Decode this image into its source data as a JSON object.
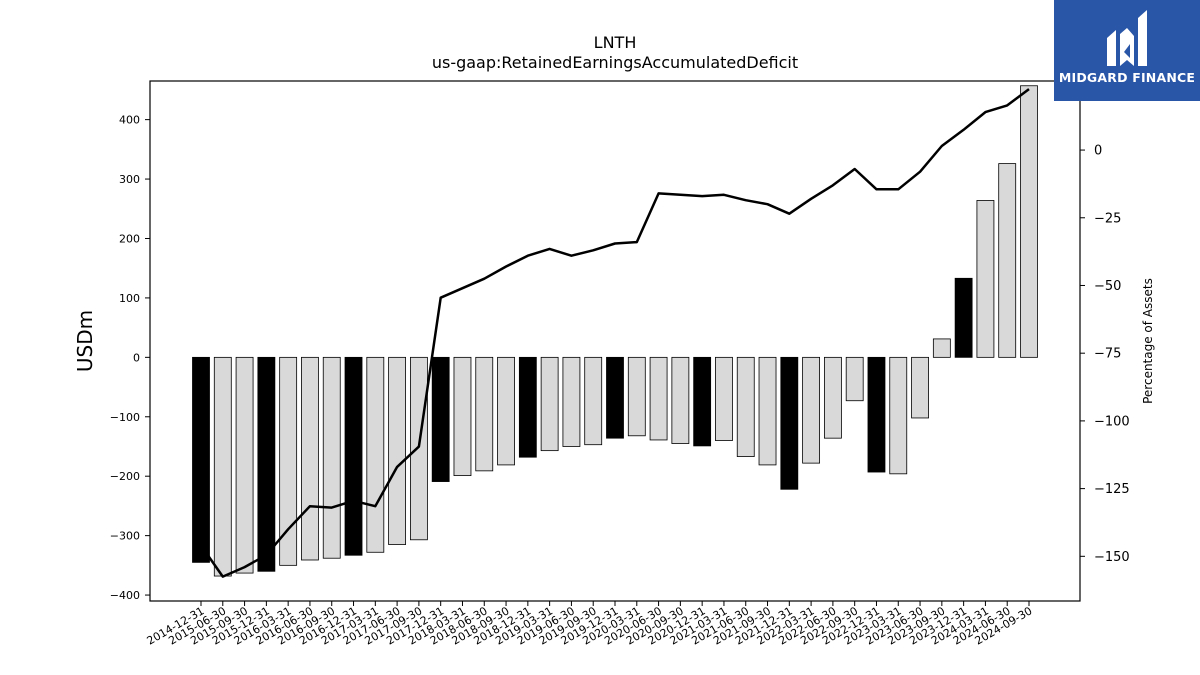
{
  "chart_data": {
    "type": "bar",
    "title": "LNTH",
    "subtitle": "us-gaap:RetainedEarningsAccumulatedDeficit",
    "ylabel": "USDm",
    "y2label": "Percentage of Assets",
    "ylim": [
      -410,
      465
    ],
    "y2lim": [
      -166.5,
      25.5
    ],
    "yticks": [
      -400,
      -300,
      -200,
      -100,
      0,
      100,
      200,
      300,
      400
    ],
    "y2ticks": [
      -150,
      -125,
      -100,
      -75,
      -50,
      -25,
      0,
      25
    ],
    "categories": [
      "2014-12-31",
      "2015-06-30",
      "2015-09-30",
      "2015-12-31",
      "2016-03-31",
      "2016-06-30",
      "2016-09-30",
      "2016-12-31",
      "2017-03-31",
      "2017-06-30",
      "2017-09-30",
      "2017-12-31",
      "2018-03-31",
      "2018-06-30",
      "2018-09-30",
      "2018-12-31",
      "2019-03-31",
      "2019-06-30",
      "2019-09-30",
      "2019-12-31",
      "2020-03-31",
      "2020-06-30",
      "2020-09-30",
      "2020-12-31",
      "2021-03-31",
      "2021-06-30",
      "2021-09-30",
      "2021-12-31",
      "2022-03-31",
      "2022-06-30",
      "2022-09-30",
      "2022-12-31",
      "2023-03-31",
      "2023-06-30",
      "2023-09-30",
      "2023-12-31",
      "2024-03-31",
      "2024-06-30",
      "2024-09-30"
    ],
    "series": [
      {
        "kind": "bar",
        "values": [
          -345,
          -368,
          -363,
          -360,
          -350,
          -341,
          -338,
          -333,
          -328,
          -315,
          -307,
          -209,
          -199,
          -191,
          -181,
          -168,
          -157,
          -150,
          -147,
          -136,
          -132,
          -139,
          -145,
          -149,
          -140,
          -167,
          -181,
          -222,
          -178,
          -136,
          -73,
          -193,
          -196,
          -102,
          31,
          133,
          264,
          326,
          457
        ],
        "fill_black": [
          true,
          false,
          false,
          true,
          false,
          false,
          false,
          true,
          false,
          false,
          false,
          true,
          false,
          false,
          false,
          true,
          false,
          false,
          false,
          true,
          false,
          false,
          false,
          true,
          false,
          false,
          false,
          true,
          false,
          false,
          false,
          true,
          false,
          false,
          false,
          true,
          false,
          false,
          false
        ]
      },
      {
        "kind": "line",
        "axis": "right",
        "values": [
          -146,
          -157.5,
          -154,
          -149.5,
          -140,
          -131.5,
          -132,
          -129.5,
          -131.5,
          -117,
          -109.5,
          -54.5,
          -51,
          -47.5,
          -43,
          -39,
          -36.5,
          -39,
          -37,
          -34.5,
          -34,
          -16,
          -16.5,
          -17,
          -16.5,
          -18.5,
          -20,
          -23.5,
          -18,
          -13,
          -7,
          -14.5,
          -14.5,
          -8,
          1.5,
          7.5,
          14,
          16.5,
          22.5
        ]
      }
    ],
    "colors": {
      "bar_black": "#000000",
      "bar_light": "#d9d9d9",
      "line": "#000000"
    },
    "grid": false
  },
  "logo": {
    "text": "MIDGARD FINANCE",
    "bg": "#2a56a8"
  }
}
